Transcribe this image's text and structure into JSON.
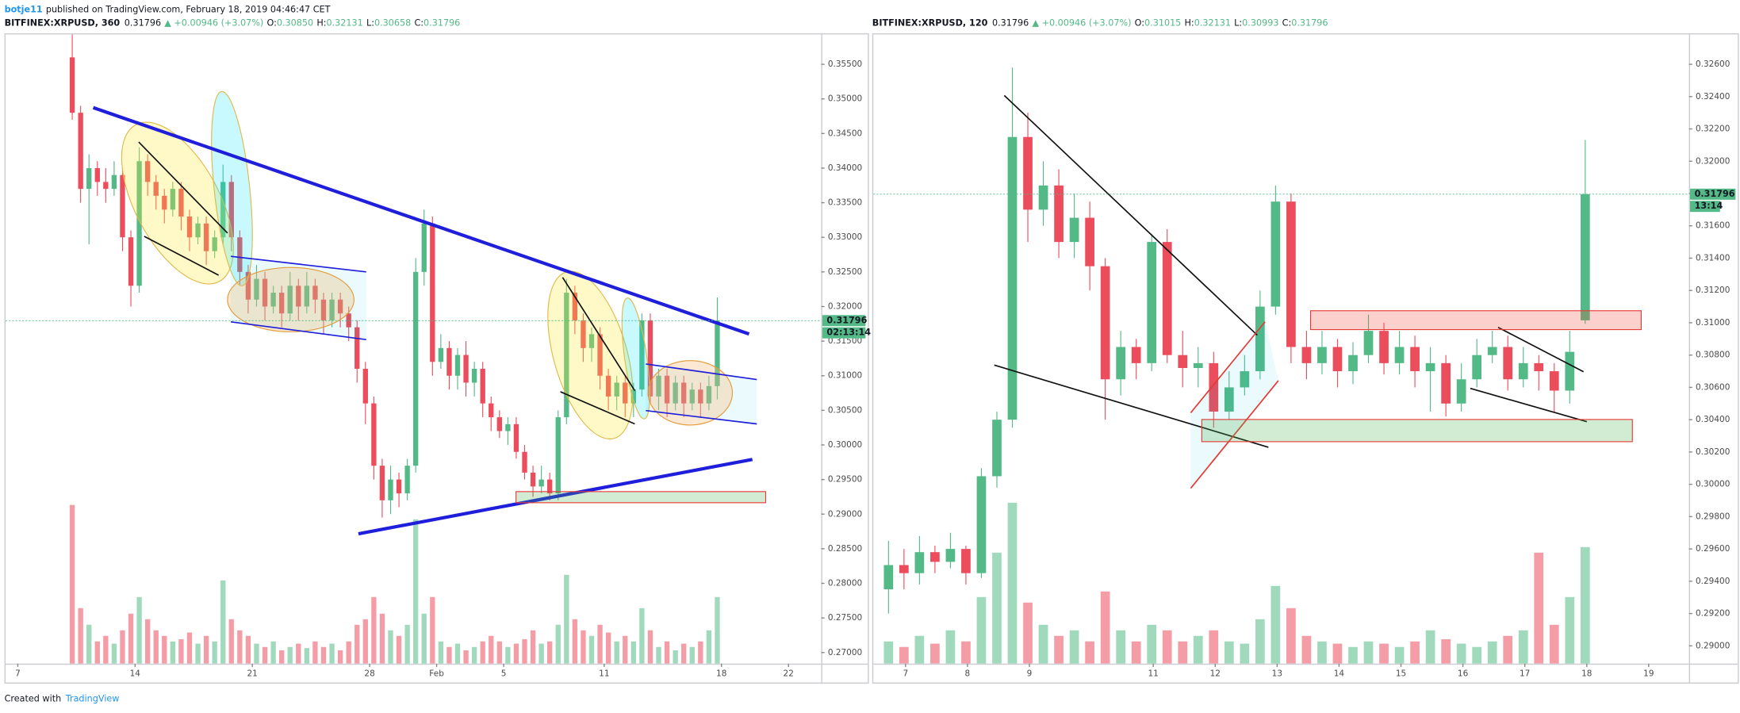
{
  "header": {
    "author": "botje11",
    "text": "published on TradingView.com, February 18, 2019 04:46:47 CET"
  },
  "footer": {
    "text": "Created with",
    "brand": "TradingView"
  },
  "chart_data": [
    {
      "type": "candlestick",
      "legend": {
        "symbol": "BITFINEX:XRPUSD, 360",
        "price": "0.31796",
        "change": "▲ +0.00946 (+3.07%)",
        "ohlc": [
          {
            "key": "O:",
            "value": "0.30850"
          },
          {
            "key": "H:",
            "value": "0.32131"
          },
          {
            "key": "L:",
            "value": "0.30658"
          },
          {
            "key": "C:",
            "value": "0.31796"
          }
        ]
      },
      "last_label": "0.31796",
      "countdown": "02:13:14",
      "up_color": "#53b987",
      "down_color": "#eb4d5c",
      "grid": false,
      "open": [
        0.356,
        0.348,
        0.337,
        0.34,
        0.338,
        0.337,
        0.339,
        0.33,
        0.323,
        0.341,
        0.338,
        0.336,
        0.334,
        0.337,
        0.333,
        0.33,
        0.332,
        0.328,
        0.33,
        0.338,
        0.33,
        0.325,
        0.321,
        0.324,
        0.32,
        0.322,
        0.319,
        0.323,
        0.32,
        0.323,
        0.321,
        0.318,
        0.321,
        0.319,
        0.317,
        0.311,
        0.306,
        0.297,
        0.292,
        0.295,
        0.293,
        0.297,
        0.325,
        0.332,
        0.312,
        0.314,
        0.31,
        0.313,
        0.309,
        0.311,
        0.306,
        0.304,
        0.302,
        0.303,
        0.299,
        0.296,
        0.294,
        0.295,
        0.293,
        0.304,
        0.322,
        0.318,
        0.314,
        0.316,
        0.31,
        0.307,
        0.309,
        0.306,
        0.308,
        0.318,
        0.307,
        0.31,
        0.306,
        0.309,
        0.306,
        0.308,
        0.306,
        0.3085
      ],
      "high": [
        0.3593,
        0.349,
        0.342,
        0.341,
        0.34,
        0.341,
        0.34,
        0.331,
        0.343,
        0.342,
        0.339,
        0.337,
        0.338,
        0.338,
        0.334,
        0.333,
        0.333,
        0.331,
        0.3405,
        0.339,
        0.331,
        0.326,
        0.326,
        0.325,
        0.323,
        0.323,
        0.325,
        0.324,
        0.325,
        0.324,
        0.322,
        0.322,
        0.322,
        0.32,
        0.318,
        0.312,
        0.307,
        0.298,
        0.297,
        0.296,
        0.298,
        0.327,
        0.334,
        0.333,
        0.316,
        0.315,
        0.314,
        0.315,
        0.312,
        0.312,
        0.307,
        0.305,
        0.304,
        0.304,
        0.3,
        0.297,
        0.297,
        0.296,
        0.305,
        0.324,
        0.323,
        0.319,
        0.317,
        0.317,
        0.311,
        0.31,
        0.31,
        0.309,
        0.319,
        0.319,
        0.311,
        0.311,
        0.31,
        0.31,
        0.309,
        0.309,
        0.31,
        0.32131
      ],
      "low": [
        0.347,
        0.335,
        0.329,
        0.336,
        0.335,
        0.336,
        0.328,
        0.32,
        0.322,
        0.336,
        0.334,
        0.332,
        0.333,
        0.331,
        0.328,
        0.329,
        0.326,
        0.327,
        0.329,
        0.328,
        0.323,
        0.319,
        0.32,
        0.318,
        0.319,
        0.317,
        0.318,
        0.318,
        0.319,
        0.319,
        0.316,
        0.317,
        0.317,
        0.315,
        0.309,
        0.303,
        0.295,
        0.2895,
        0.29,
        0.291,
        0.292,
        0.296,
        0.323,
        0.31,
        0.311,
        0.308,
        0.308,
        0.307,
        0.307,
        0.304,
        0.302,
        0.301,
        0.3,
        0.298,
        0.295,
        0.2925,
        0.293,
        0.292,
        0.292,
        0.303,
        0.316,
        0.312,
        0.312,
        0.308,
        0.305,
        0.305,
        0.304,
        0.304,
        0.307,
        0.306,
        0.305,
        0.304,
        0.305,
        0.304,
        0.305,
        0.304,
        0.305,
        0.30658
      ],
      "close": [
        0.348,
        0.337,
        0.34,
        0.338,
        0.337,
        0.339,
        0.33,
        0.323,
        0.341,
        0.338,
        0.336,
        0.334,
        0.337,
        0.333,
        0.33,
        0.332,
        0.328,
        0.33,
        0.338,
        0.33,
        0.325,
        0.321,
        0.324,
        0.32,
        0.322,
        0.319,
        0.323,
        0.32,
        0.323,
        0.321,
        0.318,
        0.321,
        0.319,
        0.317,
        0.311,
        0.306,
        0.297,
        0.292,
        0.295,
        0.293,
        0.297,
        0.325,
        0.332,
        0.312,
        0.314,
        0.31,
        0.313,
        0.309,
        0.311,
        0.306,
        0.304,
        0.302,
        0.303,
        0.299,
        0.296,
        0.294,
        0.295,
        0.293,
        0.304,
        0.322,
        0.318,
        0.314,
        0.316,
        0.31,
        0.307,
        0.309,
        0.306,
        0.308,
        0.318,
        0.307,
        0.31,
        0.306,
        0.309,
        0.306,
        0.308,
        0.306,
        0.3085,
        0.31796
      ],
      "volume": [
        143,
        50,
        35,
        20,
        25,
        18,
        30,
        45,
        60,
        40,
        30,
        25,
        20,
        22,
        28,
        18,
        25,
        20,
        75,
        40,
        30,
        25,
        18,
        15,
        20,
        12,
        15,
        18,
        14,
        20,
        15,
        18,
        12,
        20,
        35,
        40,
        60,
        45,
        30,
        25,
        35,
        130,
        45,
        60,
        20,
        15,
        18,
        12,
        15,
        20,
        25,
        20,
        15,
        18,
        22,
        30,
        18,
        20,
        35,
        80,
        40,
        30,
        25,
        35,
        28,
        20,
        25,
        20,
        50,
        30,
        15,
        20,
        12,
        18,
        15,
        20,
        30,
        60
      ],
      "xlim": [
        -7.96,
        89.4
      ],
      "xticks": [
        {
          "value": -6.5,
          "label": "7"
        },
        {
          "value": 7.5,
          "label": "14"
        },
        {
          "value": 21.5,
          "label": "21"
        },
        {
          "value": 35.5,
          "label": "28"
        },
        {
          "value": 43.5,
          "label": "Feb"
        },
        {
          "value": 51.5,
          "label": "5"
        },
        {
          "value": 63.5,
          "label": "11"
        },
        {
          "value": 77.5,
          "label": "18"
        },
        {
          "value": 85.5,
          "label": "22"
        }
      ],
      "ylim": [
        0.2684,
        0.35932
      ],
      "yticks": [
        {
          "value": 0.27,
          "label": "0.27000"
        },
        {
          "value": 0.275,
          "label": "0.27500"
        },
        {
          "value": 0.28,
          "label": "0.28000"
        },
        {
          "value": 0.285,
          "label": "0.28500"
        },
        {
          "value": 0.29,
          "label": "0.29000"
        },
        {
          "value": 0.295,
          "label": "0.29500"
        },
        {
          "value": 0.3,
          "label": "0.30000"
        },
        {
          "value": 0.305,
          "label": "0.30500"
        },
        {
          "value": 0.31,
          "label": "0.31000"
        },
        {
          "value": 0.315,
          "label": "0.31500"
        },
        {
          "value": 0.32,
          "label": "0.32000"
        },
        {
          "value": 0.325,
          "label": "0.32500"
        },
        {
          "value": 0.33,
          "label": "0.33000"
        },
        {
          "value": 0.335,
          "label": "0.33500"
        },
        {
          "value": 0.34,
          "label": "0.34000"
        },
        {
          "value": 0.345,
          "label": "0.34500"
        },
        {
          "value": 0.35,
          "label": "0.35000"
        },
        {
          "value": 0.355,
          "label": "0.35500"
        }
      ]
    },
    {
      "type": "candlestick",
      "legend": {
        "symbol": "BITFINEX:XRPUSD, 120",
        "price": "0.31796",
        "change": "▲ +0.00946 (+3.07%)",
        "ohlc": [
          {
            "key": "O:",
            "value": "0.31015"
          },
          {
            "key": "H:",
            "value": "0.32131"
          },
          {
            "key": "L:",
            "value": "0.30993"
          },
          {
            "key": "C:",
            "value": "0.31796"
          }
        ]
      },
      "last_label": "0.31796",
      "countdown": "13:14",
      "up_color": "#53b987",
      "down_color": "#eb4d5c",
      "grid": false,
      "open": [
        0.2935,
        0.295,
        0.2945,
        0.2958,
        0.2952,
        0.296,
        0.2945,
        0.3005,
        0.304,
        0.3215,
        0.317,
        0.3185,
        0.315,
        0.3165,
        0.3135,
        0.3065,
        0.3085,
        0.3075,
        0.315,
        0.308,
        0.3072,
        0.3075,
        0.3045,
        0.306,
        0.307,
        0.311,
        0.3175,
        0.3085,
        0.3075,
        0.3085,
        0.307,
        0.308,
        0.3095,
        0.3075,
        0.3085,
        0.307,
        0.3075,
        0.305,
        0.3065,
        0.308,
        0.3085,
        0.3065,
        0.3075,
        0.307,
        0.3058,
        0.31015
      ],
      "high": [
        0.2965,
        0.296,
        0.2968,
        0.2962,
        0.297,
        0.2962,
        0.301,
        0.3045,
        0.3258,
        0.323,
        0.32,
        0.3195,
        0.318,
        0.3175,
        0.314,
        0.3095,
        0.309,
        0.3155,
        0.3158,
        0.3095,
        0.3085,
        0.3082,
        0.307,
        0.308,
        0.312,
        0.3185,
        0.318,
        0.3095,
        0.3095,
        0.309,
        0.3088,
        0.3105,
        0.31,
        0.3095,
        0.3092,
        0.3085,
        0.308,
        0.3075,
        0.309,
        0.3095,
        0.3092,
        0.3085,
        0.308,
        0.3075,
        0.3095,
        0.32131
      ],
      "low": [
        0.292,
        0.2935,
        0.2938,
        0.2945,
        0.2948,
        0.2938,
        0.2942,
        0.2998,
        0.3035,
        0.315,
        0.316,
        0.314,
        0.314,
        0.312,
        0.304,
        0.3055,
        0.3065,
        0.307,
        0.3075,
        0.306,
        0.306,
        0.3035,
        0.304,
        0.3055,
        0.3065,
        0.3105,
        0.3075,
        0.3065,
        0.3068,
        0.306,
        0.3062,
        0.3075,
        0.3068,
        0.3068,
        0.306,
        0.3045,
        0.3042,
        0.3045,
        0.306,
        0.3075,
        0.3058,
        0.306,
        0.3058,
        0.3045,
        0.305,
        0.30993
      ],
      "close": [
        0.295,
        0.2945,
        0.2958,
        0.2952,
        0.296,
        0.2945,
        0.3005,
        0.304,
        0.3215,
        0.317,
        0.3185,
        0.315,
        0.3165,
        0.3135,
        0.3065,
        0.3085,
        0.3075,
        0.315,
        0.308,
        0.3072,
        0.3075,
        0.3045,
        0.306,
        0.307,
        0.311,
        0.3175,
        0.3085,
        0.3075,
        0.3085,
        0.307,
        0.308,
        0.3095,
        0.3075,
        0.3085,
        0.307,
        0.3075,
        0.305,
        0.3065,
        0.308,
        0.3085,
        0.3065,
        0.3075,
        0.307,
        0.3058,
        0.3082,
        0.31796
      ],
      "volume": [
        20,
        15,
        25,
        18,
        30,
        20,
        60,
        100,
        145,
        55,
        35,
        25,
        30,
        20,
        65,
        30,
        20,
        35,
        30,
        20,
        25,
        30,
        20,
        18,
        40,
        70,
        50,
        25,
        20,
        18,
        15,
        20,
        18,
        15,
        20,
        30,
        22,
        18,
        15,
        20,
        25,
        30,
        100,
        35,
        60,
        105
      ],
      "xlim": [
        -0.98,
        51.7
      ],
      "xticks": [
        {
          "value": 1.1,
          "label": "7"
        },
        {
          "value": 5.1,
          "label": "8"
        },
        {
          "value": 9.1,
          "label": "9"
        },
        {
          "value": 17.1,
          "label": "11"
        },
        {
          "value": 21.1,
          "label": "12"
        },
        {
          "value": 25.1,
          "label": "13"
        },
        {
          "value": 29.1,
          "label": "14"
        },
        {
          "value": 33.1,
          "label": "15"
        },
        {
          "value": 37.1,
          "label": "16"
        },
        {
          "value": 41.1,
          "label": "17"
        },
        {
          "value": 45.1,
          "label": "18"
        },
        {
          "value": 49.1,
          "label": "19"
        }
      ],
      "ylim": [
        0.2889,
        0.32785
      ],
      "yticks": [
        {
          "value": 0.29,
          "label": "0.29000"
        },
        {
          "value": 0.292,
          "label": "0.29200"
        },
        {
          "value": 0.294,
          "label": "0.29400"
        },
        {
          "value": 0.296,
          "label": "0.29600"
        },
        {
          "value": 0.298,
          "label": "0.29800"
        },
        {
          "value": 0.3,
          "label": "0.30000"
        },
        {
          "value": 0.302,
          "label": "0.30200"
        },
        {
          "value": 0.304,
          "label": "0.30400"
        },
        {
          "value": 0.306,
          "label": "0.30600"
        },
        {
          "value": 0.308,
          "label": "0.30800"
        },
        {
          "value": 0.31,
          "label": "0.31000"
        },
        {
          "value": 0.312,
          "label": "0.31200"
        },
        {
          "value": 0.314,
          "label": "0.31400"
        },
        {
          "value": 0.316,
          "label": "0.31600"
        },
        {
          "value": 0.318,
          "label": "0.31800"
        },
        {
          "value": 0.32,
          "label": "0.32000"
        },
        {
          "value": 0.322,
          "label": "0.32200"
        },
        {
          "value": 0.324,
          "label": "0.32400"
        },
        {
          "value": 0.326,
          "label": "0.32600"
        }
      ]
    }
  ]
}
